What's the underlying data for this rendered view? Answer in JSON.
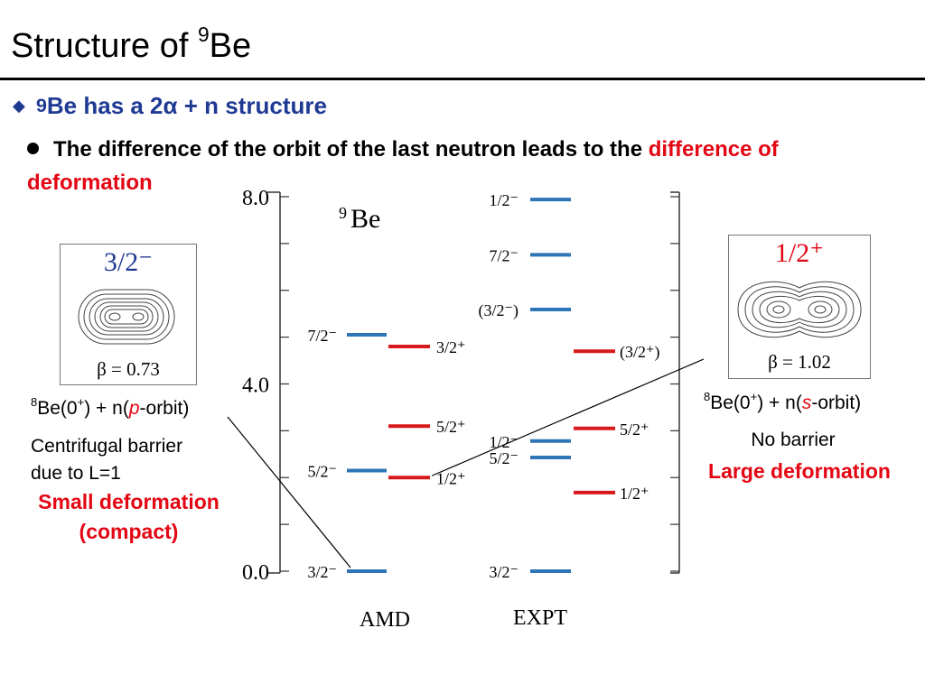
{
  "slide": {
    "title_main": "Structure of ",
    "title_sup": "9",
    "title_tail": "Be"
  },
  "bullets": {
    "level1": {
      "sup": "9",
      "text": "Be has a 2α + n structure"
    },
    "level2": {
      "text_black": "The difference of the orbit of the last neutron leads to the ",
      "text_red": "difference of deformation"
    }
  },
  "left_annotation": {
    "panel_label": "3/2⁻",
    "beta": "β = 0.73",
    "config_sup": "8",
    "config_a": "Be(0",
    "config_plus": "+",
    "config_b": ") + n(",
    "config_orbit": "p",
    "config_c": "-orbit)",
    "line1": "Centrifugal barrier",
    "line2": "due to L=1",
    "red1": "Small deformation",
    "red2": "(compact)"
  },
  "right_annotation": {
    "panel_label": "1/2⁺",
    "beta": "β = 1.02",
    "config_sup": "8",
    "config_a": "Be(0",
    "config_plus": "+",
    "config_b": ") + n(",
    "config_orbit": "s",
    "config_c": "-orbit)",
    "line1": "No barrier",
    "red1": "Large deformation"
  },
  "colors": {
    "negative_parity": "#2e75b6",
    "positive_parity": "#d7191c",
    "accent_blue": "#1f3a93"
  },
  "chart_data": {
    "type": "level-scheme",
    "title_sup": "9",
    "title": "Be",
    "ylabel": "",
    "ylim": [
      0,
      8
    ],
    "y_ticks": [
      {
        "value": 0,
        "label": "0.0"
      },
      {
        "value": 4,
        "label": "4.0"
      },
      {
        "value": 8,
        "label": "8.0"
      }
    ],
    "columns": [
      {
        "name": "AMD",
        "levels": [
          {
            "energy": 0.0,
            "label": "3/2⁻",
            "parity": "negative"
          },
          {
            "energy": 2.15,
            "label": "5/2⁻",
            "parity": "negative"
          },
          {
            "energy": 2.0,
            "label": "1/2⁺",
            "parity": "positive"
          },
          {
            "energy": 3.1,
            "label": "5/2⁺",
            "parity": "positive"
          },
          {
            "energy": 4.8,
            "label": "3/2⁺",
            "parity": "positive"
          },
          {
            "energy": 5.05,
            "label": "7/2⁻",
            "parity": "negative"
          }
        ]
      },
      {
        "name": "EXPT",
        "levels": [
          {
            "energy": 0.0,
            "label": "3/2⁻",
            "parity": "negative"
          },
          {
            "energy": 1.68,
            "label": "1/2⁺",
            "parity": "positive"
          },
          {
            "energy": 2.43,
            "label": "5/2⁻",
            "parity": "negative"
          },
          {
            "energy": 2.78,
            "label": "1/2⁻",
            "parity": "negative"
          },
          {
            "energy": 3.05,
            "label": "5/2⁺",
            "parity": "positive"
          },
          {
            "energy": 4.7,
            "label": "(3/2⁺)",
            "parity": "positive"
          },
          {
            "energy": 5.59,
            "label": "(3/2⁻)",
            "parity": "negative"
          },
          {
            "energy": 6.76,
            "label": "7/2⁻",
            "parity": "negative"
          },
          {
            "energy": 7.94,
            "label": "1/2⁻",
            "parity": "negative"
          }
        ]
      }
    ]
  }
}
